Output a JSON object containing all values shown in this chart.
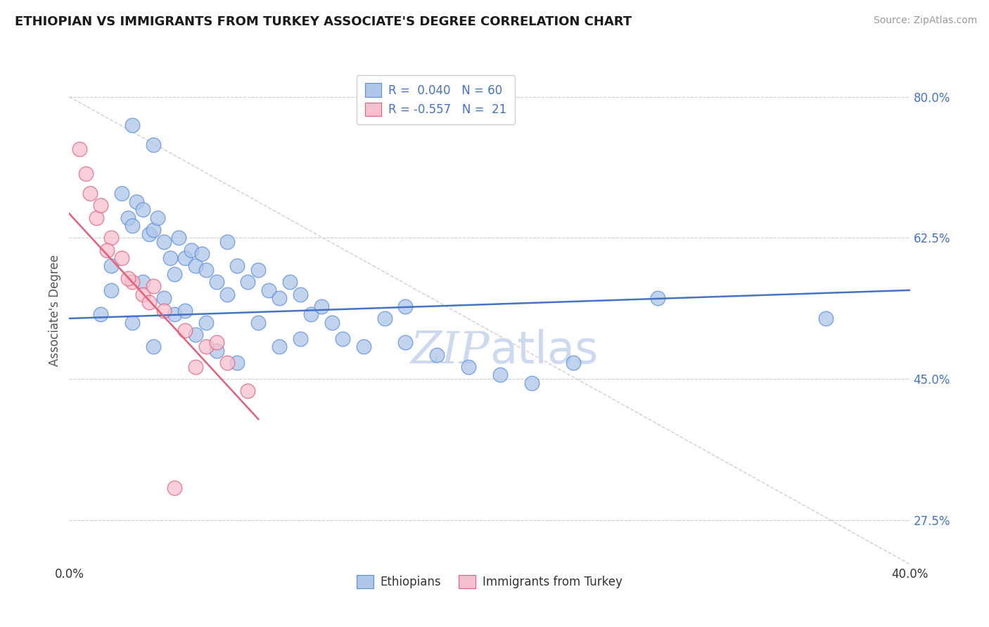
{
  "title": "ETHIOPIAN VS IMMIGRANTS FROM TURKEY ASSOCIATE'S DEGREE CORRELATION CHART",
  "source": "Source: ZipAtlas.com",
  "ylabel": "Associate's Degree",
  "y_ticks": [
    27.5,
    45.0,
    62.5,
    80.0
  ],
  "y_tick_labels": [
    "27.5%",
    "45.0%",
    "62.5%",
    "80.0%"
  ],
  "x_min": 0.0,
  "x_max": 40.0,
  "y_min": 22.0,
  "y_max": 85.0,
  "legend_label1": "Ethiopians",
  "legend_label2": "Immigrants from Turkey",
  "r1": "0.040",
  "n1": "60",
  "r2": "-0.557",
  "n2": "21",
  "blue_fill": "#aec6e8",
  "pink_fill": "#f7c0ce",
  "blue_edge": "#5b8dd9",
  "pink_edge": "#e06080",
  "blue_line_color": "#4472c4",
  "pink_line_color": "#e0607a",
  "diag_line_color": "#d8c8d8",
  "watermark_color": "#ccd9ee",
  "title_color": "#1a1a1a",
  "axis_label_color": "#555555",
  "tick_color_blue": "#4472c4",
  "tick_color_black": "#333333",
  "blue_scatter_x": [
    1.5,
    2.0,
    2.5,
    2.8,
    3.0,
    3.2,
    3.5,
    3.8,
    4.0,
    4.2,
    4.5,
    4.8,
    5.0,
    5.2,
    5.5,
    5.8,
    6.0,
    6.3,
    6.5,
    7.0,
    7.5,
    8.0,
    8.5,
    9.0,
    9.5,
    10.0,
    10.5,
    11.0,
    11.5,
    12.0,
    12.5,
    13.0,
    14.0,
    15.0,
    16.0,
    17.5,
    19.0,
    20.5,
    22.0,
    24.0,
    2.0,
    3.0,
    4.0,
    5.0,
    6.0,
    7.0,
    8.0,
    9.0,
    10.0,
    11.0,
    3.5,
    4.5,
    5.5,
    6.5,
    7.5,
    28.0,
    36.0,
    16.0,
    3.0,
    4.0
  ],
  "blue_scatter_y": [
    53.0,
    59.0,
    68.0,
    65.0,
    64.0,
    67.0,
    66.0,
    63.0,
    63.5,
    65.0,
    62.0,
    60.0,
    58.0,
    62.5,
    60.0,
    61.0,
    59.0,
    60.5,
    58.5,
    57.0,
    62.0,
    59.0,
    57.0,
    58.5,
    56.0,
    55.0,
    57.0,
    55.5,
    53.0,
    54.0,
    52.0,
    50.0,
    49.0,
    52.5,
    49.5,
    48.0,
    46.5,
    45.5,
    44.5,
    47.0,
    56.0,
    52.0,
    49.0,
    53.0,
    50.5,
    48.5,
    47.0,
    52.0,
    49.0,
    50.0,
    57.0,
    55.0,
    53.5,
    52.0,
    55.5,
    55.0,
    52.5,
    54.0,
    76.5,
    74.0
  ],
  "pink_scatter_x": [
    0.5,
    0.8,
    1.0,
    1.3,
    1.5,
    2.0,
    2.5,
    3.0,
    3.5,
    4.0,
    4.5,
    5.5,
    6.5,
    7.5,
    8.5,
    1.8,
    2.8,
    3.8,
    5.0,
    6.0,
    7.0
  ],
  "pink_scatter_y": [
    73.5,
    70.5,
    68.0,
    65.0,
    66.5,
    62.5,
    60.0,
    57.0,
    55.5,
    56.5,
    53.5,
    51.0,
    49.0,
    47.0,
    43.5,
    61.0,
    57.5,
    54.5,
    31.5,
    46.5,
    49.5
  ],
  "blue_trend_x0": 0.0,
  "blue_trend_y0": 52.5,
  "blue_trend_x1": 40.0,
  "blue_trend_y1": 56.0,
  "pink_trend_x0": 0.0,
  "pink_trend_y0": 65.5,
  "pink_trend_x1": 9.0,
  "pink_trend_y1": 40.0
}
